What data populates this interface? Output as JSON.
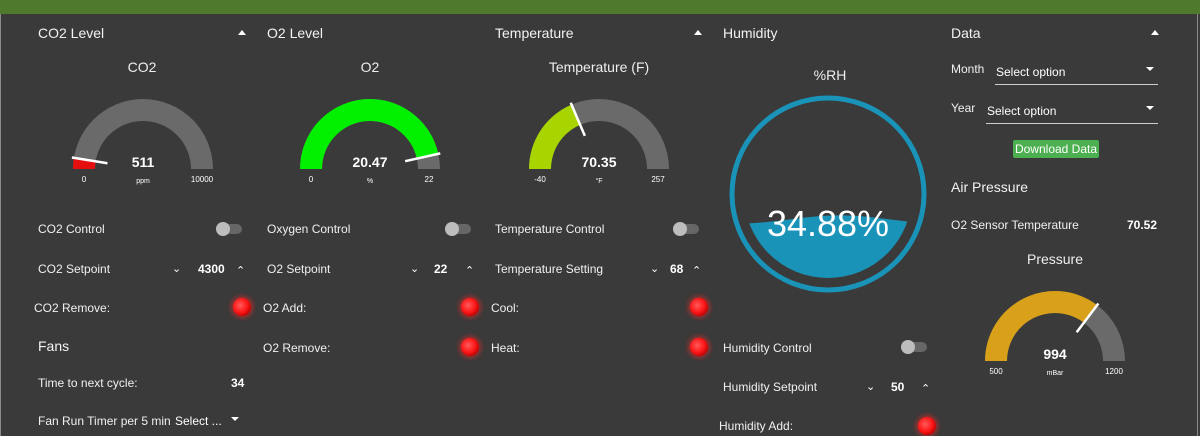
{
  "co2": {
    "header": "CO2 Level",
    "gauge_title": "CO2",
    "value": "511",
    "unit": "ppm",
    "min": "0",
    "max": "10000",
    "level": 511,
    "range": [
      0,
      10000
    ],
    "color": "#e41010",
    "control_label": "CO2 Control",
    "setpoint_label": "CO2 Setpoint",
    "setpoint_value": "4300",
    "remove_label": "CO2 Remove:"
  },
  "fans": {
    "header": "Fans",
    "next_cycle_label": "Time to next cycle:",
    "next_cycle_value": "34",
    "run_timer_label": "Fan Run Timer per 5 min",
    "run_timer_select": "Select ..."
  },
  "o2": {
    "header": "O2 Level",
    "gauge_title": "O2",
    "value": "20.47",
    "unit": "%",
    "min": "0",
    "max": "22",
    "level": 20.47,
    "range": [
      0,
      22
    ],
    "color": "#00f000",
    "control_label": "Oxygen Control",
    "setpoint_label": "O2 Setpoint",
    "setpoint_value": "22",
    "add_label": "O2 Add:",
    "remove_label": "O2 Remove:"
  },
  "temp": {
    "header": "Temperature",
    "gauge_title": "Temperature (F)",
    "value": "70.35",
    "unit": "°F",
    "min": "-40",
    "max": "257",
    "level": 70.35,
    "range": [
      -40,
      257
    ],
    "color": "#a8d400",
    "control_label": "Temperature Control",
    "setting_label": "Temperature Setting",
    "setting_value": "68",
    "cool_label": "Cool:",
    "heat_label": "Heat:"
  },
  "humidity": {
    "header": "Humidity",
    "gauge_title": "%RH",
    "value": "34.88%",
    "level": 34.88,
    "color": "#1a93b8",
    "control_label": "Humidity Control",
    "setpoint_label": "Humidity Setpoint",
    "setpoint_value": "50",
    "add_label": "Humidity Add:"
  },
  "data": {
    "header": "Data",
    "month_label": "Month",
    "month_value": "Select option",
    "year_label": "Year",
    "year_value": "Select option",
    "download_label": "Download Data"
  },
  "air": {
    "header": "Air Pressure",
    "sensor_temp_label": "O2 Sensor Temperature",
    "sensor_temp_value": "70.52",
    "gauge_title": "Pressure",
    "value": "994",
    "unit": "mBar",
    "min": "500",
    "max": "1200",
    "level": 994,
    "range": [
      500,
      1200
    ],
    "color": "#d9a019"
  },
  "colors": {
    "topbar": "#4f7a2e",
    "background": "#3a3a3a",
    "gauge_track": "#6a6a6a",
    "led": "#ff2020",
    "button": "#4caf50"
  }
}
